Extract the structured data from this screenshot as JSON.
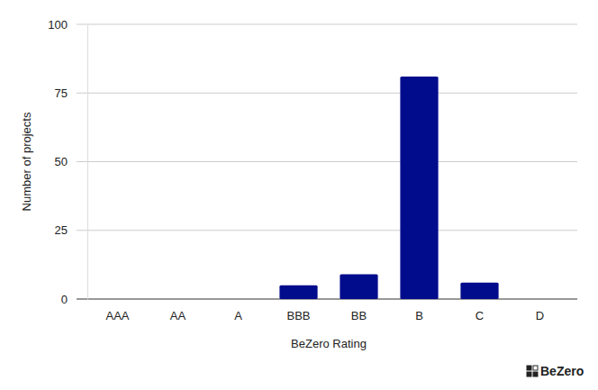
{
  "chart_data": {
    "type": "bar",
    "x_label": "BeZero Rating",
    "y_label": "Number of projects",
    "categories": [
      "AAA",
      "AA",
      "A",
      "BBB",
      "BB",
      "B",
      "C",
      "D"
    ],
    "values": [
      0,
      0,
      0,
      5,
      9,
      81,
      6,
      0
    ],
    "color": "#000c8c",
    "ylim": [
      0,
      100
    ],
    "yticks": [
      0,
      25,
      50,
      75,
      100
    ],
    "grid": true,
    "annotations": [
      "BeZero"
    ]
  }
}
